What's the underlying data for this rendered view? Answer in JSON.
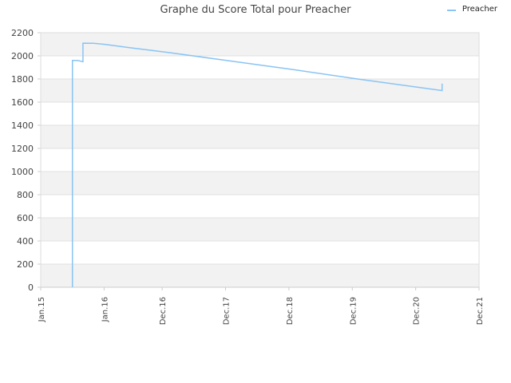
{
  "chart_data": {
    "type": "line",
    "title": "Graphe du Score Total pour Preacher",
    "xlabel": "",
    "ylabel": "",
    "ylim": [
      0,
      2200
    ],
    "yticks": [
      0,
      200,
      400,
      600,
      800,
      1000,
      1200,
      1400,
      1600,
      1800,
      2000,
      2200
    ],
    "xticks": [
      "Jan.15",
      "Jan.16",
      "Dec.16",
      "Dec.17",
      "Dec.18",
      "Dec.19",
      "Dec.20",
      "Dec.21"
    ],
    "grid": true,
    "grid_style": "alternating horizontal bands",
    "legend": "top-right",
    "series": [
      {
        "name": "Preacher",
        "color": "#89C4F4",
        "points": [
          {
            "x": "2015-07",
            "y": 0
          },
          {
            "x": "2015-07",
            "y": 1960
          },
          {
            "x": "2015-08",
            "y": 1960
          },
          {
            "x": "2015-09",
            "y": 1950
          },
          {
            "x": "2015-09",
            "y": 2110
          },
          {
            "x": "2015-11",
            "y": 2108
          },
          {
            "x": "2016-01",
            "y": 2100
          },
          {
            "x": "2016-06",
            "y": 2070
          },
          {
            "x": "2017-01",
            "y": 2030
          },
          {
            "x": "2018-01",
            "y": 1955
          },
          {
            "x": "2019-01",
            "y": 1880
          },
          {
            "x": "2020-01",
            "y": 1800
          },
          {
            "x": "2021-01",
            "y": 1725
          },
          {
            "x": "2021-05",
            "y": 1700
          },
          {
            "x": "2021-05",
            "y": 1760
          }
        ]
      }
    ]
  }
}
